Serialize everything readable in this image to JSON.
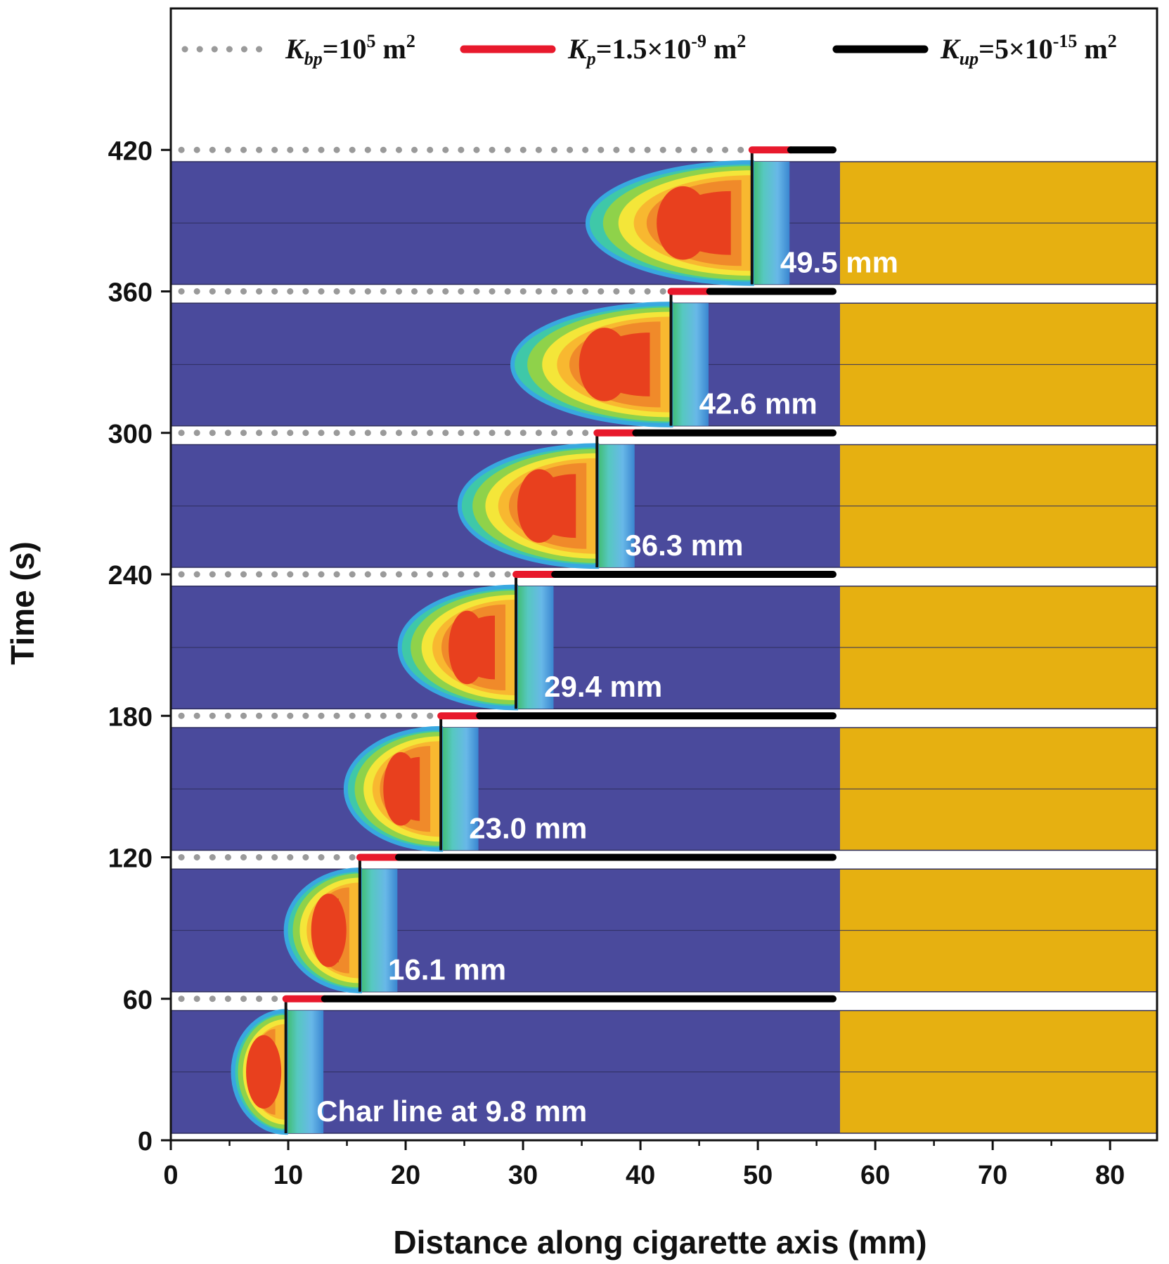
{
  "chart_data": {
    "type": "contour-strip",
    "xlabel": "Distance along cigarette axis (mm)",
    "ylabel": "Time (s)",
    "xlim": [
      0,
      84
    ],
    "ylim": [
      0,
      480
    ],
    "xticks": [
      0,
      10,
      20,
      30,
      40,
      50,
      60,
      70,
      80
    ],
    "yticks": [
      0,
      60,
      120,
      180,
      240,
      300,
      360,
      420
    ],
    "tobacco_end_mm": 57,
    "legend": [
      {
        "base": "K",
        "sub": "bp",
        "rest": "=10",
        "sup": "5",
        "unit": " m",
        "unit_sup": "2",
        "style": "dotted",
        "color": "#9a9a9a"
      },
      {
        "base": "K",
        "sub": "p",
        "rest": "=1.5×10",
        "sup": "-9",
        "unit": " m",
        "unit_sup": "2",
        "style": "solid",
        "color": "#e8192c"
      },
      {
        "base": "K",
        "sub": "up",
        "rest": "=5×10",
        "sup": "-15",
        "unit": " m",
        "unit_sup": "2",
        "style": "solid",
        "color": "#000000"
      }
    ],
    "snapshots": [
      {
        "time": 60,
        "char_line_mm": 9.8,
        "label": "Char line at 9.8 mm"
      },
      {
        "time": 120,
        "char_line_mm": 16.1,
        "label": "16.1 mm"
      },
      {
        "time": 180,
        "char_line_mm": 23.0,
        "label": "23.0 mm"
      },
      {
        "time": 240,
        "char_line_mm": 29.4,
        "label": "29.4 mm"
      },
      {
        "time": 300,
        "char_line_mm": 36.3,
        "label": "36.3 mm"
      },
      {
        "time": 360,
        "char_line_mm": 42.6,
        "label": "42.6 mm"
      },
      {
        "time": 420,
        "char_line_mm": 49.5,
        "label": "49.5 mm"
      }
    ],
    "colors": {
      "tobacco": "#4a4a9c",
      "filter": "#e6b011",
      "cold_band": "#2a8fd0",
      "contour": [
        "#38a8e0",
        "#3fc8a8",
        "#8fd24a",
        "#f4e639",
        "#f8b830",
        "#f08a2a",
        "#e8401e"
      ]
    }
  }
}
